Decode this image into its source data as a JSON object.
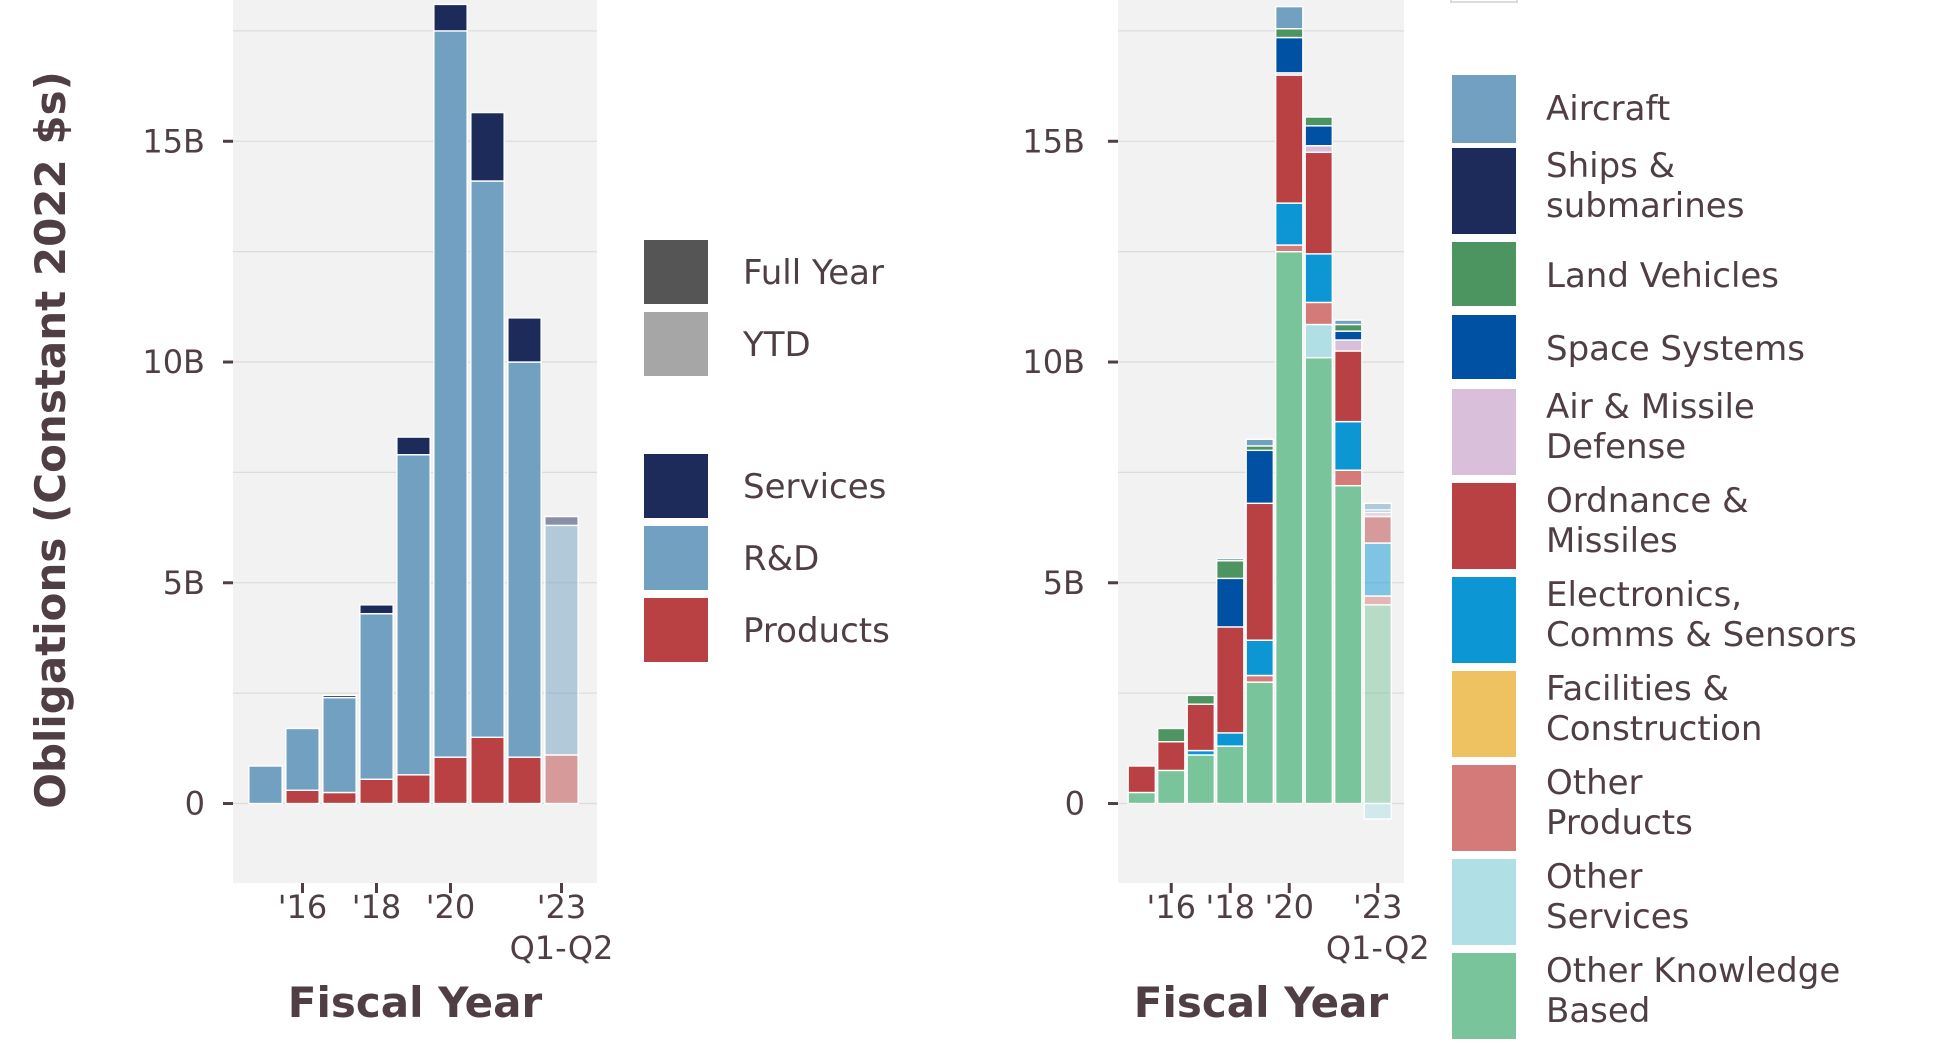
{
  "y_axis_title": "Obligations (Constant 2022 $s)",
  "chart_data": [
    {
      "type": "bar",
      "stacked": true,
      "xlabel": "Fiscal Year",
      "ylim": [
        -1.8,
        18.2
      ],
      "y_ticks": [
        0,
        5,
        10,
        15
      ],
      "y_tick_labels": [
        "0",
        "5B",
        "10B",
        "15B"
      ],
      "categories": [
        "2015",
        "2016",
        "2017",
        "2018",
        "2019",
        "2020",
        "2021",
        "2022",
        "2023 Q1-Q2"
      ],
      "x_tick_labels": [
        {
          "category": "2016",
          "label": "'16"
        },
        {
          "category": "2018",
          "label": "'18"
        },
        {
          "category": "2020",
          "label": "'20"
        },
        {
          "category": "2023 Q1-Q2",
          "label": "'23\nQ1-Q2"
        }
      ],
      "ytd_category": "2023 Q1-Q2",
      "grid": true,
      "series": [
        {
          "name": "Products",
          "color": "#b94143",
          "values": [
            0.0,
            0.3,
            0.25,
            0.55,
            0.65,
            1.05,
            1.5,
            1.05,
            1.1
          ]
        },
        {
          "name": "R&D",
          "color": "#72a0c1",
          "values": [
            0.85,
            1.4,
            2.15,
            3.75,
            7.25,
            16.45,
            12.6,
            8.95,
            5.2
          ]
        },
        {
          "name": "Services",
          "color": "#1d2b5a",
          "values": [
            0.0,
            0.0,
            0.05,
            0.2,
            0.4,
            0.6,
            1.55,
            1.0,
            0.2
          ]
        }
      ],
      "legend": {
        "placement": "right",
        "period_groups": [
          {
            "label": "Full Year",
            "color": "#555555"
          },
          {
            "label": "YTD",
            "color": "#a6a6a6"
          }
        ],
        "entries": [
          {
            "label": "Services",
            "color": "#1d2b5a"
          },
          {
            "label": "R&D",
            "color": "#72a0c1"
          },
          {
            "label": "Products",
            "color": "#b94143"
          }
        ]
      }
    },
    {
      "type": "bar",
      "stacked": true,
      "xlabel": "Fiscal Year",
      "ylim": [
        -1.8,
        18.2
      ],
      "y_ticks": [
        0,
        5,
        10,
        15
      ],
      "y_tick_labels": [
        "0",
        "5B",
        "10B",
        "15B"
      ],
      "categories": [
        "2015",
        "2016",
        "2017",
        "2018",
        "2019",
        "2020",
        "2021",
        "2022",
        "2023 Q1-Q2"
      ],
      "x_tick_labels": [
        {
          "category": "2016",
          "label": "'16"
        },
        {
          "category": "2018",
          "label": "'18"
        },
        {
          "category": "2020",
          "label": "'20"
        },
        {
          "category": "2023 Q1-Q2",
          "label": "'23\nQ1-Q2"
        }
      ],
      "ytd_category": "2023 Q1-Q2",
      "grid": true,
      "series": [
        {
          "name": "Other Knowledge Based",
          "color": "#79c49a",
          "values": [
            0.25,
            0.75,
            1.1,
            1.3,
            2.75,
            12.5,
            10.1,
            7.2,
            4.5
          ]
        },
        {
          "name": "Other Services",
          "color": "#b0dfe6",
          "values": [
            0.0,
            0.0,
            0.0,
            0.0,
            0.0,
            0.0,
            0.75,
            0.0,
            -0.35
          ]
        },
        {
          "name": "Other Products",
          "color": "#d47a78",
          "values": [
            0.0,
            0.0,
            0.0,
            0.0,
            0.15,
            0.15,
            0.5,
            0.35,
            0.2
          ]
        },
        {
          "name": "Facilities & Construction",
          "color": "#eec260",
          "values": [
            0.0,
            0.0,
            0.0,
            0.0,
            0.0,
            0.0,
            0.0,
            0.0,
            0.0
          ]
        },
        {
          "name": "Electronics, Comms & Sensors",
          "color": "#0c97d4",
          "values": [
            0.0,
            0.0,
            0.1,
            0.3,
            0.8,
            0.95,
            1.1,
            1.1,
            1.2
          ]
        },
        {
          "name": "Ordnance & Missiles",
          "color": "#b94143",
          "values": [
            0.6,
            0.65,
            1.05,
            2.4,
            3.1,
            2.9,
            2.3,
            1.6,
            0.6
          ]
        },
        {
          "name": "Air & Missile Defense",
          "color": "#d9bfd9",
          "values": [
            0.0,
            0.0,
            0.0,
            0.0,
            0.0,
            0.05,
            0.15,
            0.25,
            0.1
          ]
        },
        {
          "name": "Space Systems",
          "color": "#0051a3",
          "values": [
            0.0,
            0.0,
            0.0,
            1.1,
            1.2,
            0.8,
            0.45,
            0.2,
            0.05
          ]
        },
        {
          "name": "Land Vehicles",
          "color": "#4d9560",
          "values": [
            0.0,
            0.3,
            0.2,
            0.4,
            0.1,
            0.2,
            0.2,
            0.15,
            0.0
          ]
        },
        {
          "name": "Ships & submarines",
          "color": "#1d2b5a",
          "values": [
            0.0,
            0.0,
            0.0,
            0.0,
            0.0,
            0.0,
            0.0,
            0.0,
            0.0
          ]
        },
        {
          "name": "Aircraft",
          "color": "#72a0c1",
          "values": [
            0.0,
            0.0,
            0.0,
            0.05,
            0.15,
            0.5,
            0.0,
            0.1,
            0.15
          ]
        }
      ],
      "legend": {
        "placement": "right",
        "entries": [
          {
            "label": "Aircraft",
            "color": "#72a0c1"
          },
          {
            "label": "Ships &\nsubmarines",
            "color": "#1d2b5a"
          },
          {
            "label": "Land Vehicles",
            "color": "#4d9560"
          },
          {
            "label": "Space Systems",
            "color": "#0051a3"
          },
          {
            "label": "Air & Missile\nDefense",
            "color": "#d9bfd9"
          },
          {
            "label": "Ordnance &\nMissiles",
            "color": "#b94143"
          },
          {
            "label": "Electronics,\nComms & Sensors",
            "color": "#0c97d4"
          },
          {
            "label": "Facilities &\nConstruction",
            "color": "#eec260"
          },
          {
            "label": "Other\nProducts",
            "color": "#d47a78"
          },
          {
            "label": "Other\nServices",
            "color": "#b0dfe6"
          },
          {
            "label": "Other Knowledge\nBased",
            "color": "#79c49a"
          }
        ]
      }
    }
  ]
}
